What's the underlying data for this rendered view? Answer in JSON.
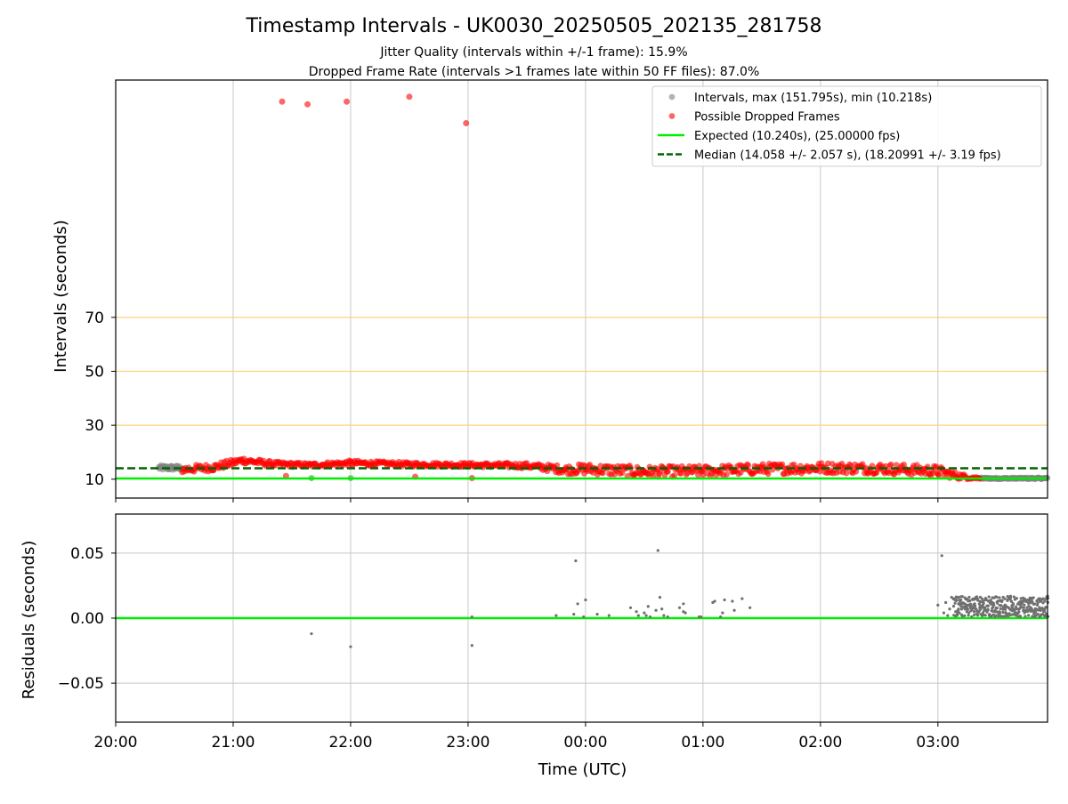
{
  "title": "Timestamp Intervals - UK0030_20250505_202135_281758",
  "subtitle1": "Jitter Quality (intervals within +/-1 frame): 15.9%",
  "subtitle2": "Dropped Frame Rate (intervals >1 frames late within 50 FF files): 87.0%",
  "colors": {
    "intervals": "#808080",
    "dropped": "#ff0000",
    "expected": "#00ee00",
    "median": "#006400",
    "threshold": "#ffd27a",
    "grid": "#c8c8c8"
  },
  "chart_data": [
    {
      "type": "scatter",
      "name": "intervals",
      "ylabel": "Intervals (seconds)",
      "yticks": [
        10,
        30,
        50,
        70
      ],
      "threshold_lines": [
        30,
        50,
        70
      ],
      "ylim": [
        3,
        158
      ],
      "xlim": [
        "20:00",
        "03:56"
      ],
      "grid": "x",
      "legend_position": "top-right",
      "legend": [
        {
          "label": "Intervals, max (151.795s), min (10.218s)",
          "marker": "gray-dot"
        },
        {
          "label": "Possible Dropped Frames",
          "marker": "red-dot"
        },
        {
          "label": "Expected (10.240s), (25.00000 fps)",
          "marker": "green-line"
        },
        {
          "label": "Median (14.058 +/- 2.057 s), (18.20991 +/- 3.19 fps)",
          "marker": "dark-green-dashed"
        }
      ],
      "expected": 10.24,
      "median": 14.058,
      "outliers": [
        {
          "x": "21:25",
          "y": 150
        },
        {
          "x": "21:38",
          "y": 149
        },
        {
          "x": "21:58",
          "y": 150
        },
        {
          "x": "22:30",
          "y": 151.8
        },
        {
          "x": "22:59",
          "y": 142
        }
      ],
      "low_points": [
        {
          "x": "21:27",
          "y": 11.2,
          "dropped": true
        },
        {
          "x": "21:40",
          "y": 10.4,
          "dropped": false
        },
        {
          "x": "22:00",
          "y": 10.4,
          "dropped": false
        },
        {
          "x": "22:33",
          "y": 10.9,
          "dropped": true
        },
        {
          "x": "23:02",
          "y": 10.4,
          "dropped": true
        }
      ],
      "gray_band": [
        {
          "x_start": "20:22",
          "x_end": "20:34",
          "y_mid": 14.2,
          "y_spread": 0.9
        },
        {
          "x_start": "03:22",
          "x_end": "03:56",
          "y_mid": 10.3,
          "y_spread": 0.3
        }
      ],
      "dropped_band": [
        {
          "x": "20:34",
          "y": 13.6,
          "spread": 1.4
        },
        {
          "x": "20:50",
          "y": 14.4,
          "spread": 1.4
        },
        {
          "x": "21:05",
          "y": 17.0,
          "spread": 1.2
        },
        {
          "x": "21:20",
          "y": 15.6,
          "spread": 1.0
        },
        {
          "x": "21:40",
          "y": 15.2,
          "spread": 0.8
        },
        {
          "x": "22:00",
          "y": 16.0,
          "spread": 1.0
        },
        {
          "x": "22:30",
          "y": 15.5,
          "spread": 0.8
        },
        {
          "x": "23:00",
          "y": 15.3,
          "spread": 0.8
        },
        {
          "x": "23:30",
          "y": 15.0,
          "spread": 1.0
        },
        {
          "x": "23:50",
          "y": 13.5,
          "spread": 1.6
        },
        {
          "x": "00:00",
          "y": 13.8,
          "spread": 2.0
        },
        {
          "x": "00:30",
          "y": 12.8,
          "spread": 2.0
        },
        {
          "x": "01:00",
          "y": 13.0,
          "spread": 2.0
        },
        {
          "x": "01:30",
          "y": 13.8,
          "spread": 2.0
        },
        {
          "x": "02:00",
          "y": 14.2,
          "spread": 2.0
        },
        {
          "x": "02:30",
          "y": 14.0,
          "spread": 2.0
        },
        {
          "x": "03:00",
          "y": 13.0,
          "spread": 2.0
        },
        {
          "x": "03:10",
          "y": 11.2,
          "spread": 1.2
        },
        {
          "x": "03:22",
          "y": 10.3,
          "spread": 0.3
        }
      ]
    },
    {
      "type": "scatter",
      "name": "residuals",
      "ylabel": "Residuals (seconds)",
      "xlabel": "Time (UTC)",
      "yticks": [
        0.05,
        0.0,
        -0.05
      ],
      "ytick_labels": [
        "0.05",
        "0.00",
        "−0.05"
      ],
      "ylim": [
        -0.08,
        0.08
      ],
      "grid": "both",
      "xticks": [
        "20:00",
        "21:00",
        "22:00",
        "23:00",
        "00:00",
        "01:00",
        "02:00",
        "03:00"
      ],
      "zero_line": 0.0,
      "points": [
        {
          "x": "21:40",
          "y": -0.012
        },
        {
          "x": "22:00",
          "y": -0.022
        },
        {
          "x": "23:02",
          "y": -0.021
        },
        {
          "x": "23:02",
          "y": 0.001
        },
        {
          "x": "23:45",
          "y": 0.002
        },
        {
          "x": "23:54",
          "y": 0.003
        },
        {
          "x": "23:55",
          "y": 0.044
        },
        {
          "x": "23:56",
          "y": 0.011
        },
        {
          "x": "23:59",
          "y": 0.001
        },
        {
          "x": "00:00",
          "y": 0.014
        },
        {
          "x": "00:06",
          "y": 0.003
        },
        {
          "x": "00:12",
          "y": 0.002
        },
        {
          "x": "00:23",
          "y": 0.008
        },
        {
          "x": "00:26",
          "y": 0.005
        },
        {
          "x": "00:27",
          "y": 0.002
        },
        {
          "x": "00:30",
          "y": 0.004
        },
        {
          "x": "00:31",
          "y": 0.002
        },
        {
          "x": "00:32",
          "y": 0.009
        },
        {
          "x": "00:33",
          "y": 0.001
        },
        {
          "x": "00:36",
          "y": 0.006
        },
        {
          "x": "00:37",
          "y": 0.052
        },
        {
          "x": "00:38",
          "y": 0.016
        },
        {
          "x": "00:39",
          "y": 0.007
        },
        {
          "x": "00:40",
          "y": 0.002
        },
        {
          "x": "00:42",
          "y": 0.001
        },
        {
          "x": "00:48",
          "y": 0.008
        },
        {
          "x": "00:50",
          "y": 0.011
        },
        {
          "x": "00:50",
          "y": 0.005
        },
        {
          "x": "00:51",
          "y": 0.004
        },
        {
          "x": "00:58",
          "y": 0.001
        },
        {
          "x": "00:59",
          "y": 0.001
        },
        {
          "x": "01:05",
          "y": 0.012
        },
        {
          "x": "01:06",
          "y": 0.013
        },
        {
          "x": "01:09",
          "y": 0.001
        },
        {
          "x": "01:10",
          "y": 0.004
        },
        {
          "x": "01:11",
          "y": 0.014
        },
        {
          "x": "01:15",
          "y": 0.013
        },
        {
          "x": "01:16",
          "y": 0.006
        },
        {
          "x": "01:20",
          "y": 0.015
        },
        {
          "x": "01:24",
          "y": 0.008
        },
        {
          "x": "03:00",
          "y": 0.01
        },
        {
          "x": "03:02",
          "y": 0.048
        },
        {
          "x": "03:03",
          "y": 0.004
        },
        {
          "x": "03:04",
          "y": 0.012
        },
        {
          "x": "03:05",
          "y": 0.002
        },
        {
          "x": "03:06",
          "y": 0.007
        },
        {
          "x": "03:07",
          "y": 0.016
        }
      ],
      "dense_region": {
        "x_start": "03:08",
        "x_end": "03:56",
        "y_min": 0.001,
        "y_max": 0.017
      }
    }
  ]
}
